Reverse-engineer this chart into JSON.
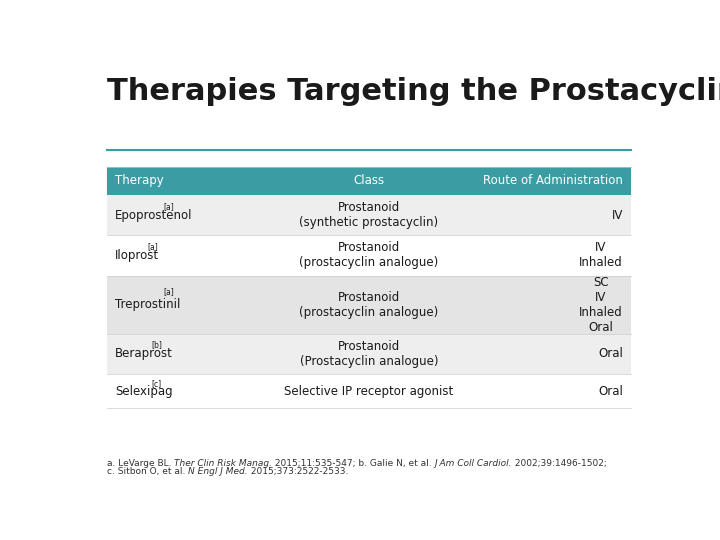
{
  "title": "Therapies Targeting the Prostacyclin Pathway",
  "title_fontsize": 22,
  "title_fontweight": "bold",
  "title_color": "#1a1a1a",
  "header_bg": "#3a9da3",
  "header_text_color": "#ffffff",
  "row_bg_light": "#eeeeee",
  "row_bg_white": "#ffffff",
  "row_bg_mid": "#e4e4e4",
  "separator_color": "#cccccc",
  "title_line_color": "#3a9da3",
  "col_headers": [
    "Therapy",
    "Class",
    "Route of Administration"
  ],
  "rows": [
    {
      "therapy_base": "Epoprostenol",
      "therapy_superscript": "[a]",
      "class_line1": "Prostanoid",
      "class_line2": "(synthetic prostacyclin)",
      "route": "IV",
      "bg": "#eeeeee"
    },
    {
      "therapy_base": "Iloprost",
      "therapy_superscript": "[a]",
      "class_line1": "Prostanoid",
      "class_line2": "(prostacyclin analogue)",
      "route": "IV\nInhaled",
      "bg": "#ffffff"
    },
    {
      "therapy_base": "Treprostinil",
      "therapy_superscript": "[a]",
      "class_line1": "Prostanoid",
      "class_line2": "(prostacyclin analogue)",
      "route": "SC\nIV\nInhaled\nOral",
      "bg": "#e4e4e4"
    },
    {
      "therapy_base": "Beraprost",
      "therapy_superscript": "[b]",
      "class_line1": "Prostanoid",
      "class_line2": "(Prostacyclin analogue)",
      "route": "Oral",
      "bg": "#eeeeee"
    },
    {
      "therapy_base": "Selexipag",
      "therapy_superscript": "[c]",
      "class_line1": "Selective IP receptor agonist",
      "class_line2": "",
      "route": "Oral",
      "bg": "#ffffff"
    }
  ],
  "footnote_seg1": [
    [
      "a. LeVarge BL. ",
      false
    ],
    [
      "Ther Clin Risk Manag.",
      true
    ],
    [
      " 2015;11:535-547; b. Galie N, et al. ",
      false
    ],
    [
      "J Am Coll Cardiol.",
      true
    ],
    [
      " 2002;39:1496-1502;",
      false
    ]
  ],
  "footnote_seg2": [
    [
      "c. Sitbon O, et al. ",
      false
    ],
    [
      "N Engl J Med.",
      true
    ],
    [
      " 2015;373:2522-2533.",
      false
    ]
  ],
  "bg_color": "#ffffff"
}
